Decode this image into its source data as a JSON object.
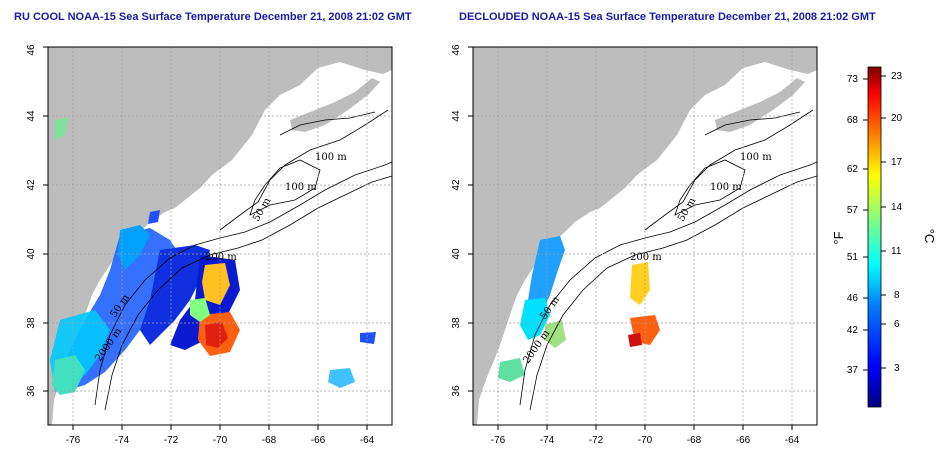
{
  "panels": [
    {
      "title": "RU COOL NOAA-15 Sea Surface Temperature December 21, 2008 21:02 GMT"
    },
    {
      "title": "DECLOUDED NOAA-15 Sea Surface Temperature December 21, 2008 21:02 GMT"
    }
  ],
  "axes": {
    "x_ticks": [
      "-76",
      "-74",
      "-72",
      "-70",
      "-68",
      "-66",
      "-64"
    ],
    "y_ticks": [
      "36",
      "38",
      "40",
      "42",
      "44",
      "46"
    ],
    "x_range": [
      -77,
      -63
    ],
    "y_range": [
      35,
      46
    ]
  },
  "contour_labels": [
    "100 m",
    "100 m",
    "50 m",
    "200 m",
    "50 m",
    "2000 m"
  ],
  "colorbar": {
    "fahrenheit_label": "°F",
    "celsius_label": "°C",
    "fahrenheit_ticks": [
      "73",
      "68",
      "62",
      "57",
      "51",
      "46",
      "42",
      "37"
    ],
    "celsius_ticks": [
      "23",
      "20",
      "17",
      "14",
      "11",
      "8",
      "6",
      "3"
    ],
    "colors": [
      "#000080",
      "#0000ff",
      "#0080ff",
      "#00ffff",
      "#80ff80",
      "#ffff00",
      "#ff8000",
      "#ff0000",
      "#800000"
    ]
  },
  "colors": {
    "land": "#bdbdbd",
    "ocean": "#ffffff",
    "grid": "#a0a0a0",
    "title": "#1a1aa8"
  }
}
